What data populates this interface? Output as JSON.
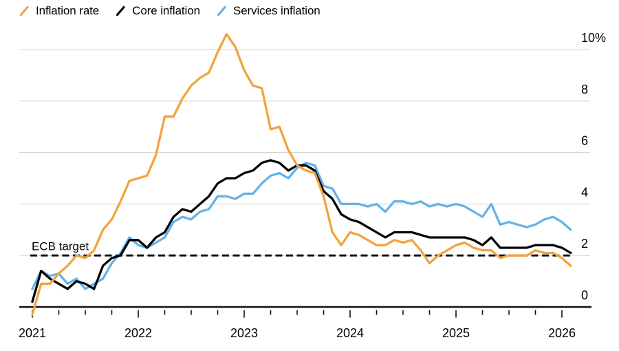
{
  "legend": {
    "items": [
      {
        "label": "Inflation rate",
        "color": "#F2A33C"
      },
      {
        "label": "Core inflation",
        "color": "#000000"
      },
      {
        "label": "Services inflation",
        "color": "#64B2E8"
      }
    ]
  },
  "annotations": {
    "target_label": "ECB target"
  },
  "chart_data": {
    "type": "line",
    "frequency": "monthly",
    "x_range": {
      "start": "2020-12",
      "end": "2026-01"
    },
    "x_tick_years": [
      "2021",
      "2022",
      "2023",
      "2024",
      "2025",
      "2026"
    ],
    "y_ticks": [
      {
        "value": 0,
        "label": "0"
      },
      {
        "value": 2,
        "label": "2"
      },
      {
        "value": 4,
        "label": "4"
      },
      {
        "value": 6,
        "label": "6"
      },
      {
        "value": 8,
        "label": "8"
      },
      {
        "value": 10,
        "label": "10%"
      }
    ],
    "ylim": [
      0,
      10
    ],
    "grid": "horizontal",
    "legend_position": "top-left",
    "target_line": {
      "label": "ECB target",
      "value": 2,
      "style": "dashed",
      "color": "#000000"
    },
    "series": [
      {
        "name": "Inflation rate",
        "color": "#F2A33C",
        "values": [
          -0.3,
          0.9,
          0.9,
          1.3,
          1.6,
          2.0,
          1.9,
          2.2,
          3.0,
          3.4,
          4.1,
          4.9,
          5.0,
          5.1,
          5.9,
          7.4,
          7.4,
          8.1,
          8.6,
          8.9,
          9.1,
          9.9,
          10.6,
          10.1,
          9.2,
          8.6,
          8.5,
          6.9,
          7.0,
          6.1,
          5.5,
          5.3,
          5.2,
          4.3,
          2.9,
          2.4,
          2.9,
          2.8,
          2.6,
          2.4,
          2.4,
          2.6,
          2.5,
          2.6,
          2.2,
          1.7,
          2.0,
          2.2,
          2.4,
          2.5,
          2.3,
          2.2,
          2.2,
          1.9,
          2.0,
          2.0,
          2.0,
          2.2,
          2.1,
          2.1,
          1.9,
          1.6
        ]
      },
      {
        "name": "Core inflation",
        "color": "#000000",
        "values": [
          0.2,
          1.4,
          1.1,
          0.9,
          0.7,
          1.0,
          0.9,
          0.7,
          1.6,
          1.9,
          2.0,
          2.6,
          2.6,
          2.3,
          2.7,
          2.9,
          3.5,
          3.8,
          3.7,
          4.0,
          4.3,
          4.8,
          5.0,
          5.0,
          5.2,
          5.3,
          5.6,
          5.7,
          5.6,
          5.3,
          5.5,
          5.5,
          5.3,
          4.5,
          4.2,
          3.6,
          3.4,
          3.3,
          3.1,
          2.9,
          2.7,
          2.9,
          2.9,
          2.9,
          2.8,
          2.7,
          2.7,
          2.7,
          2.7,
          2.7,
          2.6,
          2.4,
          2.7,
          2.3,
          2.3,
          2.3,
          2.3,
          2.4,
          2.4,
          2.4,
          2.3,
          2.1
        ]
      },
      {
        "name": "Services inflation",
        "color": "#64B2E8",
        "values": [
          0.7,
          1.4,
          1.2,
          1.3,
          0.9,
          1.1,
          0.7,
          0.9,
          1.1,
          1.7,
          2.1,
          2.7,
          2.4,
          2.3,
          2.5,
          2.7,
          3.3,
          3.5,
          3.4,
          3.7,
          3.8,
          4.3,
          4.3,
          4.2,
          4.4,
          4.4,
          4.8,
          5.1,
          5.2,
          5.0,
          5.4,
          5.6,
          5.5,
          4.7,
          4.6,
          4.0,
          4.0,
          4.0,
          3.9,
          4.0,
          3.7,
          4.1,
          4.1,
          4.0,
          4.1,
          3.9,
          4.0,
          3.9,
          4.0,
          3.9,
          3.7,
          3.5,
          4.0,
          3.2,
          3.3,
          3.2,
          3.1,
          3.2,
          3.4,
          3.5,
          3.3,
          3.0
        ]
      }
    ]
  }
}
